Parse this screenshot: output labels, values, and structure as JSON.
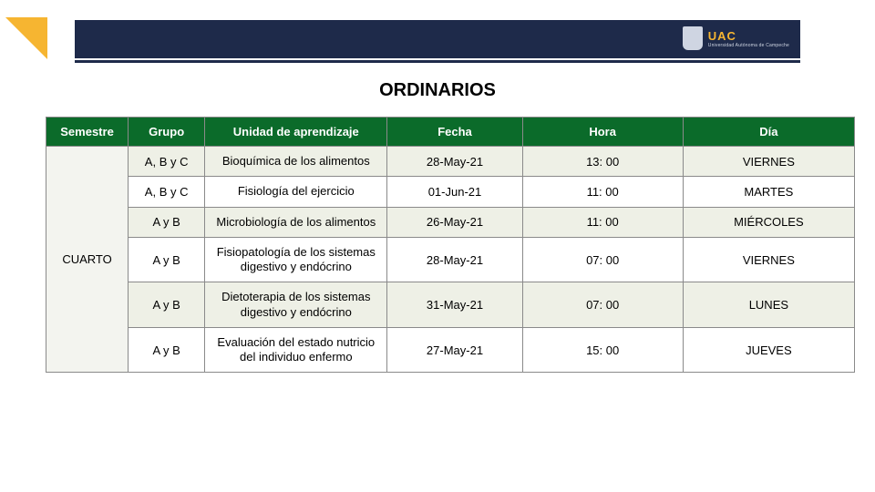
{
  "banner": {
    "bg_color": "#1e2a4a",
    "triangle_color": "#f6b531",
    "logo_text": "UAC",
    "logo_sub": "Universidad Autónoma de Campeche"
  },
  "title": "ORDINARIOS",
  "table": {
    "header_bg": "#0b6b2a",
    "header_fg": "#ffffff",
    "row_alt_bg": [
      "#eef0e6",
      "#ffffff"
    ],
    "semester_cell_bg": "#f3f4ef",
    "columns": [
      "Semestre",
      "Grupo",
      "Unidad de aprendizaje",
      "Fecha",
      "Hora",
      "Día"
    ],
    "semester": "CUARTO",
    "rows": [
      {
        "grupo": "A, B y C",
        "unidad": "Bioquímica de los alimentos",
        "fecha": "28-May-21",
        "hora": "13: 00",
        "dia": "VIERNES"
      },
      {
        "grupo": "A, B y C",
        "unidad": "Fisiología del ejercicio",
        "fecha": "01-Jun-21",
        "hora": "11: 00",
        "dia": "MARTES"
      },
      {
        "grupo": "A y B",
        "unidad": "Microbiología de los alimentos",
        "fecha": "26-May-21",
        "hora": "11: 00",
        "dia": "MIÉRCOLES"
      },
      {
        "grupo": "A y B",
        "unidad": "Fisiopatología de los sistemas digestivo y endócrino",
        "fecha": "28-May-21",
        "hora": "07: 00",
        "dia": "VIERNES"
      },
      {
        "grupo": "A y B",
        "unidad": "Dietoterapia de los sistemas digestivo y endócrino",
        "fecha": "31-May-21",
        "hora": "07: 00",
        "dia": "LUNES"
      },
      {
        "grupo": "A y B",
        "unidad": "Evaluación del estado nutricio del individuo enfermo",
        "fecha": "27-May-21",
        "hora": "15: 00",
        "dia": "JUEVES"
      }
    ]
  }
}
